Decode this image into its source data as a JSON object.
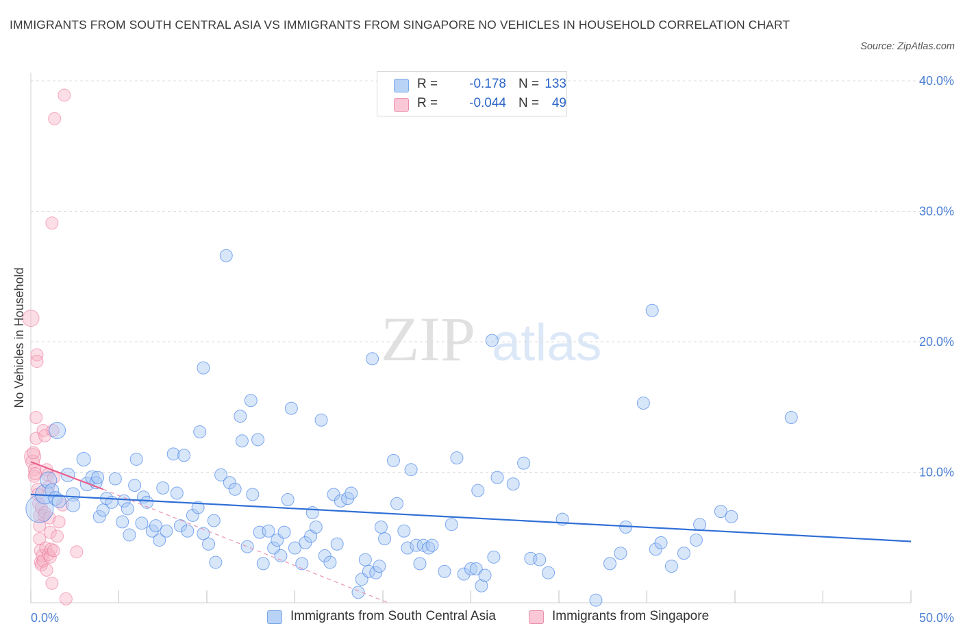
{
  "title": "IMMIGRANTS FROM SOUTH CENTRAL ASIA VS IMMIGRANTS FROM SINGAPORE NO VEHICLES IN HOUSEHOLD CORRELATION CHART",
  "source": "Source: ZipAtlas.com",
  "watermark": {
    "zip": "ZIP",
    "atlas": "atlas"
  },
  "legend": {
    "r_label": "R =",
    "n_label": "N =",
    "rows": [
      {
        "r": "-0.178",
        "n": "133",
        "color": "#a8c8f5"
      },
      {
        "r": "-0.044",
        "n": "49",
        "color": "#f7b5c8"
      }
    ]
  },
  "bottom_legend": [
    "Immigrants from South Central Asia",
    "Immigrants from Singapore"
  ],
  "chart_data": {
    "type": "scatter",
    "ylabel": "No Vehicles in Household",
    "xlabel": "",
    "xlim": [
      0,
      50
    ],
    "ylim": [
      0,
      40
    ],
    "x_tick_labels": [
      "0.0%",
      "50.0%"
    ],
    "y_ticks": [
      10,
      20,
      30,
      40
    ],
    "y_tick_labels": [
      "10.0%",
      "20.0%",
      "30.0%",
      "40.0%"
    ],
    "grid": true,
    "colors": {
      "blue": "#4a86e8",
      "blue_fill": "#a8c8f5",
      "pink": "#ee6b95",
      "pink_fill": "#f7b5c8"
    },
    "series": [
      {
        "name": "Immigrants from South Central Asia",
        "color": "#4a86e8",
        "trend": {
          "x": [
            0,
            50
          ],
          "y": [
            8.3,
            4.7
          ]
        },
        "points": [
          [
            0.5,
            7.2,
            20
          ],
          [
            0.8,
            8.3,
            14
          ],
          [
            1.0,
            9.4,
            12
          ],
          [
            1.2,
            8.6,
            10
          ],
          [
            1.4,
            8.0,
            10
          ],
          [
            1.6,
            7.8,
            10
          ],
          [
            1.5,
            13.2,
            12
          ],
          [
            2.4,
            8.3,
            10
          ],
          [
            2.1,
            9.8,
            10
          ],
          [
            2.4,
            7.5,
            10
          ],
          [
            3.0,
            11.0,
            10
          ],
          [
            3.2,
            9.1,
            10
          ],
          [
            3.5,
            9.6,
            10
          ],
          [
            3.7,
            9.2,
            9
          ],
          [
            3.8,
            9.6,
            9
          ],
          [
            3.9,
            6.6,
            9
          ],
          [
            4.1,
            7.1,
            9
          ],
          [
            4.3,
            8.0,
            9
          ],
          [
            4.6,
            7.7,
            9
          ],
          [
            4.8,
            9.5,
            9
          ],
          [
            5.2,
            6.2,
            9
          ],
          [
            5.3,
            7.8,
            9
          ],
          [
            5.5,
            7.2,
            9
          ],
          [
            5.6,
            5.2,
            9
          ],
          [
            5.9,
            9.0,
            9
          ],
          [
            6.0,
            11.0,
            9
          ],
          [
            6.3,
            6.1,
            9
          ],
          [
            6.4,
            8.1,
            9
          ],
          [
            6.6,
            7.7,
            9
          ],
          [
            6.9,
            5.5,
            9
          ],
          [
            7.1,
            5.9,
            9
          ],
          [
            7.3,
            4.8,
            9
          ],
          [
            7.5,
            8.8,
            9
          ],
          [
            7.7,
            5.5,
            9
          ],
          [
            8.1,
            11.4,
            9
          ],
          [
            8.3,
            8.4,
            9
          ],
          [
            8.5,
            5.9,
            9
          ],
          [
            8.7,
            11.3,
            9
          ],
          [
            8.9,
            5.5,
            9
          ],
          [
            9.2,
            6.7,
            9
          ],
          [
            9.5,
            7.3,
            9
          ],
          [
            9.6,
            13.1,
            9
          ],
          [
            9.8,
            5.3,
            9
          ],
          [
            10.1,
            4.5,
            9
          ],
          [
            10.4,
            6.3,
            9
          ],
          [
            10.5,
            3.1,
            9
          ],
          [
            10.8,
            9.8,
            9
          ],
          [
            11.1,
            26.6,
            9
          ],
          [
            11.3,
            9.2,
            9
          ],
          [
            11.6,
            8.7,
            9
          ],
          [
            9.8,
            18.0,
            9
          ],
          [
            11.9,
            14.3,
            9
          ],
          [
            12.0,
            12.4,
            9
          ],
          [
            12.3,
            4.3,
            9
          ],
          [
            12.5,
            15.5,
            9
          ],
          [
            12.6,
            8.3,
            9
          ],
          [
            12.9,
            12.5,
            9
          ],
          [
            13.0,
            5.4,
            9
          ],
          [
            13.2,
            3.0,
            9
          ],
          [
            13.5,
            5.5,
            9
          ],
          [
            13.8,
            4.2,
            9
          ],
          [
            14.0,
            4.8,
            9
          ],
          [
            14.2,
            3.6,
            9
          ],
          [
            14.4,
            5.4,
            9
          ],
          [
            14.6,
            7.9,
            9
          ],
          [
            14.8,
            14.9,
            9
          ],
          [
            15.0,
            4.2,
            9
          ],
          [
            15.4,
            3.0,
            9
          ],
          [
            15.6,
            4.6,
            9
          ],
          [
            15.9,
            5.1,
            9
          ],
          [
            16.0,
            6.9,
            9
          ],
          [
            16.2,
            5.8,
            9
          ],
          [
            16.5,
            14.0,
            9
          ],
          [
            16.7,
            3.6,
            9
          ],
          [
            17.0,
            3.1,
            9
          ],
          [
            17.2,
            8.3,
            9
          ],
          [
            17.4,
            4.5,
            9
          ],
          [
            17.6,
            7.8,
            9
          ],
          [
            18.0,
            8.0,
            9
          ],
          [
            18.2,
            8.4,
            9
          ],
          [
            18.6,
            0.8,
            9
          ],
          [
            18.8,
            1.8,
            9
          ],
          [
            19.0,
            3.3,
            9
          ],
          [
            19.2,
            2.4,
            9
          ],
          [
            19.4,
            18.7,
            9
          ],
          [
            19.6,
            2.3,
            9
          ],
          [
            19.8,
            2.8,
            9
          ],
          [
            19.9,
            5.8,
            9
          ],
          [
            20.1,
            4.9,
            9
          ],
          [
            20.6,
            10.9,
            9
          ],
          [
            20.8,
            7.6,
            9
          ],
          [
            21.2,
            5.5,
            9
          ],
          [
            21.4,
            4.2,
            9
          ],
          [
            21.6,
            10.2,
            9
          ],
          [
            21.9,
            4.4,
            9
          ],
          [
            22.1,
            3.0,
            9
          ],
          [
            22.3,
            4.4,
            9
          ],
          [
            22.6,
            4.2,
            9
          ],
          [
            22.8,
            4.4,
            9
          ],
          [
            23.5,
            2.4,
            9
          ],
          [
            23.9,
            6.0,
            9
          ],
          [
            24.2,
            11.1,
            9
          ],
          [
            24.6,
            2.2,
            9
          ],
          [
            25.0,
            2.6,
            9
          ],
          [
            25.3,
            2.6,
            9
          ],
          [
            25.4,
            8.6,
            9
          ],
          [
            25.6,
            1.3,
            9
          ],
          [
            25.8,
            2.1,
            9
          ],
          [
            26.3,
            3.5,
            9
          ],
          [
            26.5,
            9.6,
            9
          ],
          [
            26.2,
            20.1,
            9
          ],
          [
            27.4,
            9.1,
            9
          ],
          [
            28.0,
            10.7,
            9
          ],
          [
            28.4,
            3.4,
            9
          ],
          [
            28.9,
            3.3,
            9
          ],
          [
            29.4,
            2.3,
            9
          ],
          [
            30.2,
            6.4,
            9
          ],
          [
            32.1,
            0.2,
            9
          ],
          [
            32.9,
            3.0,
            9
          ],
          [
            33.5,
            3.8,
            9
          ],
          [
            33.8,
            5.8,
            9
          ],
          [
            34.8,
            15.3,
            9
          ],
          [
            35.3,
            22.4,
            9
          ],
          [
            35.5,
            4.1,
            9
          ],
          [
            35.8,
            4.6,
            9
          ],
          [
            36.4,
            2.8,
            9
          ],
          [
            37.1,
            3.8,
            9
          ],
          [
            37.8,
            4.8,
            9
          ],
          [
            38.0,
            6.0,
            9
          ],
          [
            39.2,
            7.0,
            9
          ],
          [
            39.8,
            6.6,
            9
          ],
          [
            43.2,
            14.2,
            9
          ]
        ]
      },
      {
        "name": "Immigrants from Singapore",
        "color": "#ee6b95",
        "trend": {
          "x": [
            0,
            4.1
          ],
          "y": [
            10.8,
            8.7
          ]
        },
        "trend_extension": {
          "x": [
            4.1,
            20.3
          ],
          "y": [
            8.7,
            0.0
          ]
        },
        "points": [
          [
            0.0,
            21.8,
            12
          ],
          [
            0.1,
            11.2,
            12
          ],
          [
            0.1,
            10.8,
            10
          ],
          [
            0.15,
            11.5,
            9
          ],
          [
            0.2,
            10.2,
            9
          ],
          [
            0.2,
            9.7,
            9
          ],
          [
            0.25,
            9.9,
            9
          ],
          [
            0.3,
            12.6,
            9
          ],
          [
            0.3,
            14.2,
            9
          ],
          [
            0.35,
            19.0,
            9
          ],
          [
            0.35,
            18.5,
            9
          ],
          [
            0.4,
            8.7,
            9
          ],
          [
            0.4,
            8.3,
            9
          ],
          [
            0.45,
            7.6,
            9
          ],
          [
            0.5,
            6.7,
            9
          ],
          [
            0.5,
            5.9,
            9
          ],
          [
            0.5,
            4.9,
            9
          ],
          [
            0.55,
            4.0,
            9
          ],
          [
            0.55,
            3.1,
            9
          ],
          [
            0.6,
            2.9,
            9
          ],
          [
            0.6,
            7.3,
            9
          ],
          [
            0.65,
            3.6,
            9
          ],
          [
            0.7,
            3.2,
            9
          ],
          [
            0.7,
            13.2,
            9
          ],
          [
            0.75,
            6.7,
            9
          ],
          [
            0.8,
            6.9,
            9
          ],
          [
            0.8,
            12.8,
            9
          ],
          [
            0.85,
            4.2,
            9
          ],
          [
            0.9,
            2.5,
            9
          ],
          [
            0.9,
            10.2,
            9
          ],
          [
            0.95,
            9.8,
            9
          ],
          [
            1.0,
            3.7,
            9
          ],
          [
            1.0,
            8.9,
            9
          ],
          [
            1.05,
            6.5,
            9
          ],
          [
            1.1,
            5.4,
            9
          ],
          [
            1.1,
            3.5,
            9
          ],
          [
            1.15,
            4.1,
            9
          ],
          [
            1.2,
            29.1,
            9
          ],
          [
            1.2,
            1.5,
            9
          ],
          [
            1.25,
            13.2,
            9
          ],
          [
            1.3,
            9.6,
            9
          ],
          [
            1.3,
            4.0,
            9
          ],
          [
            1.35,
            37.1,
            9
          ],
          [
            1.5,
            5.1,
            9
          ],
          [
            1.6,
            6.2,
            9
          ],
          [
            1.8,
            7.5,
            9
          ],
          [
            2.0,
            0.3,
            9
          ],
          [
            1.9,
            38.9,
            9
          ],
          [
            2.6,
            3.9,
            9
          ]
        ]
      }
    ]
  }
}
